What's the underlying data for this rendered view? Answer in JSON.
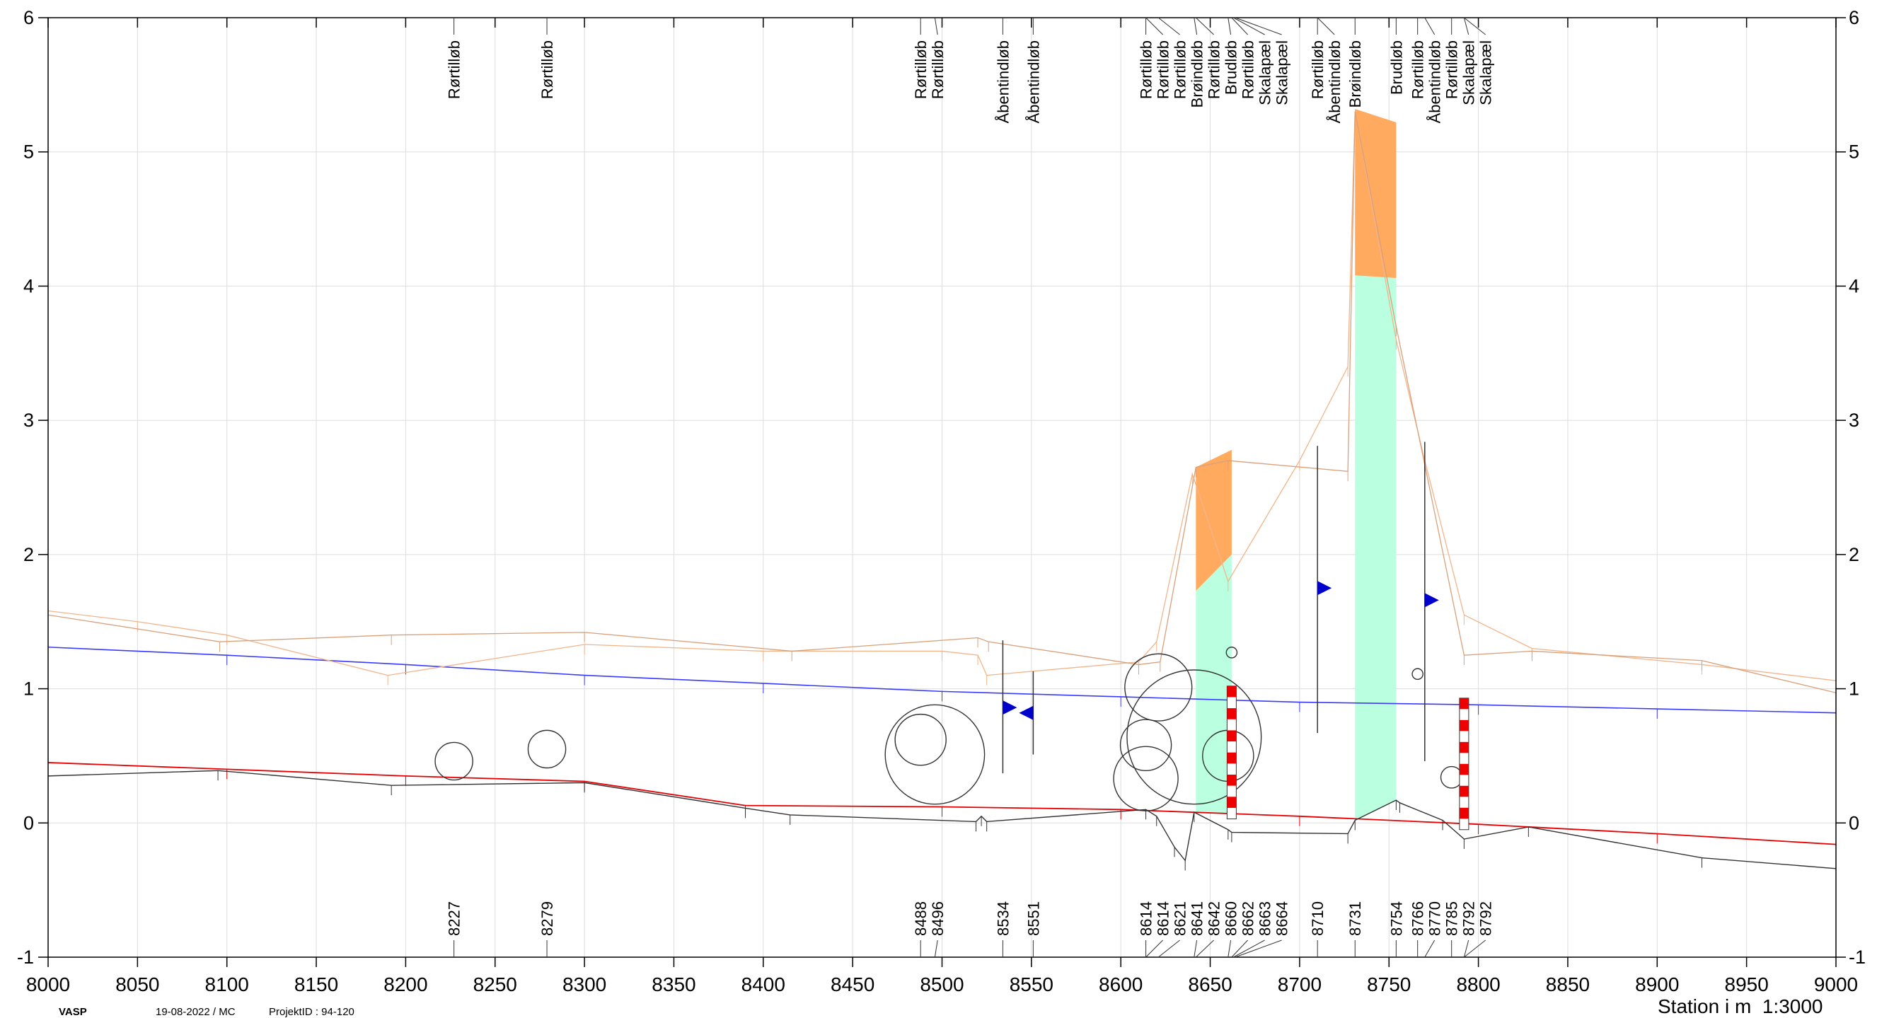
{
  "chart_data": {
    "type": "line",
    "xlabel": "Station i m",
    "scale_label": "1:3000",
    "xlim": [
      8000,
      9000
    ],
    "ylim": [
      -1,
      6
    ],
    "x_ticks": [
      8000,
      8050,
      8100,
      8150,
      8200,
      8250,
      8300,
      8350,
      8400,
      8450,
      8500,
      8550,
      8600,
      8650,
      8700,
      8750,
      8800,
      8850,
      8900,
      8950,
      9000
    ],
    "y_ticks": [
      -1,
      0,
      1,
      2,
      3,
      4,
      5,
      6
    ],
    "grid": true,
    "colors": {
      "blue_line": "#3a3aff",
      "red_line": "#e60000",
      "terrain_line": "#f2b48a",
      "terrain_line_2": "#d9a07a",
      "bottom_line": "#333333",
      "orange_fill": "#ffaa5e",
      "green_fill": "#b9ffe0",
      "marker_blue": "#0000cc",
      "stripe_red": "#ee0000"
    },
    "series": [
      {
        "key": "blue",
        "x": [
          8000,
          8100,
          8200,
          8300,
          8400,
          8500,
          8600,
          8700,
          8800,
          8900,
          9000
        ],
        "y": [
          1.31,
          1.25,
          1.18,
          1.1,
          1.04,
          0.98,
          0.94,
          0.9,
          0.88,
          0.85,
          0.82
        ]
      },
      {
        "key": "red",
        "x": [
          8000,
          8100,
          8200,
          8300,
          8390,
          8500,
          8600,
          8700,
          8800,
          8900,
          9000
        ],
        "y": [
          0.45,
          0.4,
          0.35,
          0.31,
          0.13,
          0.12,
          0.1,
          0.05,
          -0.01,
          -0.08,
          -0.16
        ]
      },
      {
        "key": "bottom",
        "x": [
          8000,
          8095,
          8192,
          8300,
          8390,
          8415,
          8519,
          8522,
          8525,
          8614,
          8620,
          8630,
          8636,
          8641,
          8660,
          8662,
          8727,
          8731,
          8754,
          8756,
          8780,
          8792,
          8828,
          8925,
          9000
        ],
        "y": [
          0.35,
          0.39,
          0.28,
          0.3,
          0.11,
          0.06,
          0.01,
          0.05,
          0.01,
          0.1,
          0.05,
          -0.18,
          -0.28,
          0.08,
          -0.05,
          -0.07,
          -0.08,
          0.02,
          0.17,
          0.15,
          0.02,
          -0.12,
          -0.03,
          -0.26,
          -0.34
        ]
      },
      {
        "key": "terrain",
        "x": [
          8000,
          8050,
          8100,
          8190,
          8300,
          8400,
          8500,
          8520,
          8525,
          8610,
          8620,
          8640,
          8660,
          8700,
          8727,
          8731,
          8754,
          8770,
          8792,
          8830,
          8925,
          9000
        ],
        "y": [
          1.58,
          1.5,
          1.4,
          1.1,
          1.33,
          1.28,
          1.28,
          1.25,
          1.1,
          1.2,
          1.35,
          2.6,
          1.8,
          2.7,
          3.4,
          5.3,
          3.6,
          2.7,
          1.55,
          1.3,
          1.18,
          1.06
        ]
      },
      {
        "key": "terrain2",
        "x": [
          8000,
          8096,
          8192,
          8300,
          8416,
          8520,
          8526,
          8610,
          8622,
          8642,
          8660,
          8727,
          8731,
          8754,
          8792,
          8830,
          8925,
          9000
        ],
        "y": [
          1.55,
          1.35,
          1.4,
          1.42,
          1.28,
          1.38,
          1.35,
          1.18,
          1.2,
          2.65,
          2.7,
          2.62,
          5.3,
          3.7,
          1.25,
          1.28,
          1.21,
          0.97
        ]
      }
    ],
    "structures": [
      {
        "x0": 8642,
        "x1": 8662,
        "y_bottom_left": 0.08,
        "y_bottom_right": 0.07,
        "y_split_left": 1.73,
        "y_split_right": 2.0,
        "y_top_left": 2.65,
        "y_top_right": 2.78
      },
      {
        "x0": 8731,
        "x1": 8754,
        "y_bottom_left": 0.02,
        "y_bottom_right": 0.17,
        "y_split_left": 4.08,
        "y_split_right": 4.06,
        "y_top_left": 5.32,
        "y_top_right": 5.22
      }
    ],
    "circles": [
      {
        "x": 8227,
        "y": 0.46,
        "r": 0.14
      },
      {
        "x": 8279,
        "y": 0.55,
        "r": 0.14
      },
      {
        "x": 8488,
        "y": 0.62,
        "r": 0.19
      },
      {
        "x": 8496,
        "y": 0.51,
        "r": 0.37
      },
      {
        "x": 8614,
        "y": 0.33,
        "r": 0.24
      },
      {
        "x": 8614,
        "y": 0.58,
        "r": 0.19
      },
      {
        "x": 8621,
        "y": 1.01,
        "r": 0.25
      },
      {
        "x": 8641,
        "y": 0.64,
        "r": 0.5
      },
      {
        "x": 8660,
        "y": 0.5,
        "r": 0.19
      },
      {
        "x": 8662,
        "y": 1.27,
        "r": 0.04
      },
      {
        "x": 8766,
        "y": 1.11,
        "r": 0.04
      },
      {
        "x": 8785,
        "y": 0.34,
        "r": 0.08
      }
    ],
    "blue_markers": [
      {
        "x": 8534,
        "y": 0.86,
        "dir": "right"
      },
      {
        "x": 8551,
        "y": 0.82,
        "dir": "left"
      },
      {
        "x": 8710,
        "y": 1.75,
        "dir": "right"
      },
      {
        "x": 8770,
        "y": 1.66,
        "dir": "right"
      }
    ],
    "vertical_lines": [
      {
        "x": 8534,
        "y0": 0.37,
        "y1": 1.36
      },
      {
        "x": 8551,
        "y0": 0.51,
        "y1": 1.13
      },
      {
        "x": 8710,
        "y0": 0.67,
        "y1": 2.81
      },
      {
        "x": 8770,
        "y0": 0.46,
        "y1": 2.84
      }
    ],
    "striped_poles": [
      {
        "x": 8662,
        "y0": 0.03,
        "y1": 1.02
      },
      {
        "x": 8792,
        "y0": -0.05,
        "y1": 0.93
      }
    ],
    "top_labels": [
      {
        "x": 8227,
        "text": "Rørtilløb"
      },
      {
        "x": 8279,
        "text": "Rørtilløb"
      },
      {
        "x": 8488,
        "text": "Rørtilløb"
      },
      {
        "x": 8496,
        "text": "Rørtilløb"
      },
      {
        "x": 8534,
        "text": "Åbentindløb"
      },
      {
        "x": 8551,
        "text": "Åbentindløb"
      },
      {
        "x": 8614,
        "text": "Rørtilløb"
      },
      {
        "x": 8614,
        "text": "Rørtilløb"
      },
      {
        "x": 8621,
        "text": "Rørtilløb"
      },
      {
        "x": 8641,
        "text": "Brøindløb"
      },
      {
        "x": 8642,
        "text": "Rørtilløb"
      },
      {
        "x": 8660,
        "text": "Brudløb"
      },
      {
        "x": 8662,
        "text": "Rørtilløb"
      },
      {
        "x": 8663,
        "text": "Skalapæl"
      },
      {
        "x": 8664,
        "text": "Skalapæl"
      },
      {
        "x": 8710,
        "text": "Rørtilløb"
      },
      {
        "x": 8710,
        "text": "Åbentindløb"
      },
      {
        "x": 8731,
        "text": "Brøindløb"
      },
      {
        "x": 8754,
        "text": "Brudløb"
      },
      {
        "x": 8766,
        "text": "Rørtilløb"
      },
      {
        "x": 8770,
        "text": "Åbentindløb"
      },
      {
        "x": 8785,
        "text": "Rørtilløb"
      },
      {
        "x": 8792,
        "text": "Skalapæl"
      },
      {
        "x": 8792,
        "text": "Skalapæl"
      }
    ],
    "bottom_labels": [
      {
        "x": 8227,
        "text": "8227"
      },
      {
        "x": 8279,
        "text": "8279"
      },
      {
        "x": 8488,
        "text": "8488"
      },
      {
        "x": 8496,
        "text": "8496"
      },
      {
        "x": 8534,
        "text": "8534"
      },
      {
        "x": 8551,
        "text": "8551"
      },
      {
        "x": 8614,
        "text": "8614"
      },
      {
        "x": 8614,
        "text": "8614"
      },
      {
        "x": 8621,
        "text": "8621"
      },
      {
        "x": 8641,
        "text": "8641"
      },
      {
        "x": 8642,
        "text": "8642"
      },
      {
        "x": 8660,
        "text": "8660"
      },
      {
        "x": 8662,
        "text": "8662"
      },
      {
        "x": 8663,
        "text": "8663"
      },
      {
        "x": 8664,
        "text": "8664"
      },
      {
        "x": 8710,
        "text": "8710"
      },
      {
        "x": 8731,
        "text": "8731"
      },
      {
        "x": 8754,
        "text": "8754"
      },
      {
        "x": 8766,
        "text": "8766"
      },
      {
        "x": 8770,
        "text": "8770"
      },
      {
        "x": 8785,
        "text": "8785"
      },
      {
        "x": 8792,
        "text": "8792"
      },
      {
        "x": 8792,
        "text": "8792"
      }
    ]
  },
  "footer": {
    "logo": "VASP",
    "date_user": "19-08-2022 / MC",
    "project_label": "ProjektID : 94-120"
  }
}
